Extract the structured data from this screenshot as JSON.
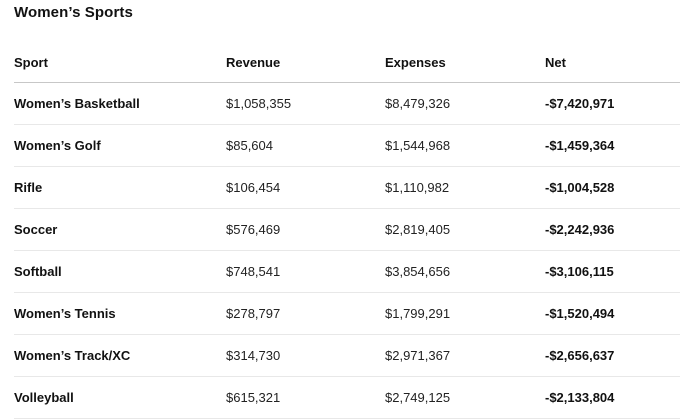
{
  "title": "Women’s Sports",
  "chart_data": {
    "type": "table",
    "title": "Women’s Sports",
    "columns": [
      "Sport",
      "Revenue",
      "Expenses",
      "Net"
    ],
    "rows": [
      {
        "sport": "Women’s Basketball",
        "revenue": "$1,058,355",
        "expenses": "$8,479,326",
        "net": "-$7,420,971"
      },
      {
        "sport": "Women’s Golf",
        "revenue": "$85,604",
        "expenses": "$1,544,968",
        "net": "-$1,459,364"
      },
      {
        "sport": "Rifle",
        "revenue": "$106,454",
        "expenses": "$1,110,982",
        "net": "-$1,004,528"
      },
      {
        "sport": "Soccer",
        "revenue": "$576,469",
        "expenses": "$2,819,405",
        "net": "-$2,242,936"
      },
      {
        "sport": "Softball",
        "revenue": "$748,541",
        "expenses": "$3,854,656",
        "net": "-$3,106,115"
      },
      {
        "sport": "Women’s Tennis",
        "revenue": "$278,797",
        "expenses": "$1,799,291",
        "net": "-$1,520,494"
      },
      {
        "sport": "Women’s Track/XC",
        "revenue": "$314,730",
        "expenses": "$2,971,367",
        "net": "-$2,656,637"
      },
      {
        "sport": "Volleyball",
        "revenue": "$615,321",
        "expenses": "$2,749,125",
        "net": "-$2,133,804"
      }
    ],
    "series": [
      {
        "name": "Revenue",
        "values": [
          1058355,
          85604,
          106454,
          576469,
          748541,
          278797,
          314730,
          615321
        ]
      },
      {
        "name": "Expenses",
        "values": [
          8479326,
          1544968,
          1110982,
          2819405,
          3854656,
          1799291,
          2971367,
          2749125
        ]
      },
      {
        "name": "Net",
        "values": [
          -7420971,
          -1459364,
          -1004528,
          -2242936,
          -3106115,
          -1520494,
          -2656637,
          -2133804
        ]
      }
    ],
    "layout": {
      "legend": "none",
      "grid": "horizontal-row-separators"
    }
  },
  "colors": {
    "background": "#ffffff",
    "text": "#111111",
    "secondary_text": "#222222",
    "header_separator": "#c7c7c7",
    "row_separator": "#e8e8e8"
  }
}
